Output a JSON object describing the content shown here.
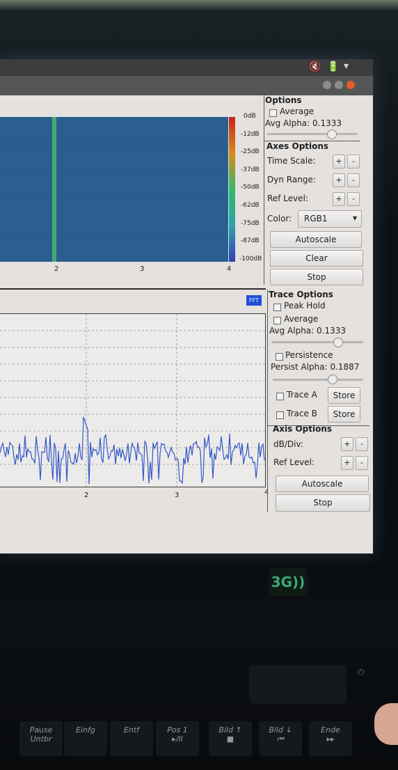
{
  "waterfall": {
    "db_scale": [
      "0dB",
      "-12dB",
      "-25dB",
      "-37dB",
      "-50dB",
      "-62dB",
      "-75dB",
      "-87dB",
      "-100dB"
    ],
    "x_ticks": [
      "2",
      "3",
      "4"
    ]
  },
  "options_panel": {
    "title": "Options",
    "average_label": "Average",
    "avg_alpha_label": "Avg Alpha: 0.1333",
    "avg_alpha_level": 0.7
  },
  "axes_options": {
    "title": "Axes Options",
    "time_scale_label": "Time Scale:",
    "dyn_range_label": "Dyn Range:",
    "ref_level_label": "Ref Level:",
    "color_label": "Color:",
    "color_value": "RGB1",
    "plus": "+",
    "minus": "-",
    "autoscale_label": "Autoscale",
    "clear_label": "Clear",
    "stop_label": "Stop"
  },
  "fft_badge": "FFT",
  "fft_plot": {
    "x_ticks": [
      "2",
      "3",
      "4"
    ]
  },
  "trace_options": {
    "title": "Trace Options",
    "peak_hold_label": "Peak Hold",
    "average_label": "Average",
    "avg_alpha_label": "Avg Alpha: 0.1333",
    "avg_alpha_level": 0.72,
    "persistence_label": "Persistence",
    "persist_alpha_label": "Persist Alpha: 0.1887",
    "persist_alpha_level": 0.65,
    "trace_a_label": "Trace A",
    "trace_b_label": "Trace B",
    "store_label": "Store"
  },
  "axis_options": {
    "title": "Axis Options",
    "db_div_label": "dB/Div:",
    "ref_level_label": "Ref Level:",
    "plus": "+",
    "minus": "-",
    "autoscale_label": "Autoscale",
    "stop_label": "Stop"
  },
  "keyboard": {
    "keys": [
      "Pause\nUntbr",
      "Einfg",
      "Entf",
      "Pos 1\n▸/II",
      "Bild ↑\n■",
      "Bild ↓\n⏮",
      "Ende\n▸▸"
    ]
  },
  "colors": {
    "waterfall_bg": "#2a5b8c",
    "signal_line": "#47b56a",
    "fft_trace": "#3356c9",
    "badge": "#1f4fd6"
  }
}
